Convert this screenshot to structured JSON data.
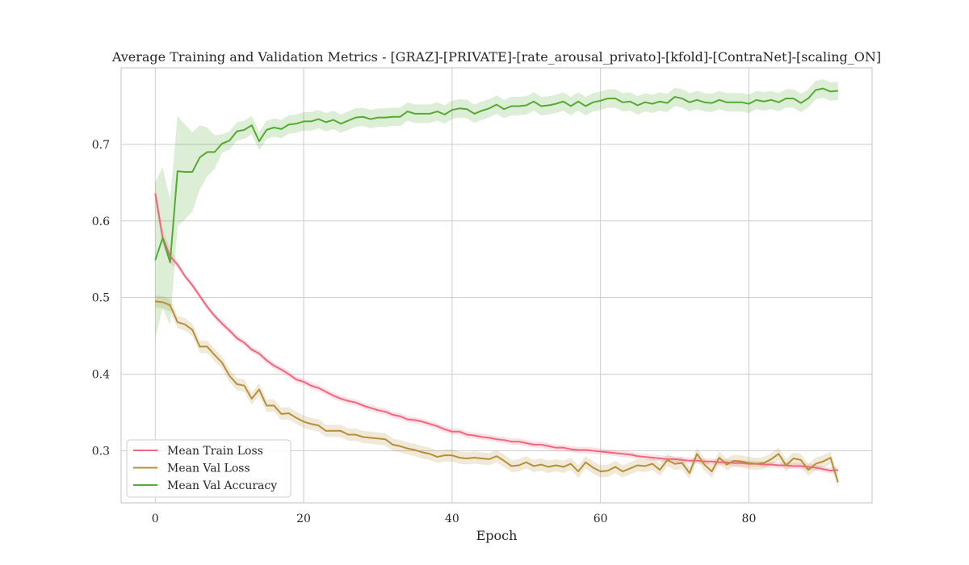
{
  "chart_data": {
    "type": "line",
    "title": "Average Training and Validation Metrics - [GRAZ]-[PRIVATE]-[rate_arousal_privato]-[kfold]-[ContraNet]-[scaling_ON]",
    "xlabel": "Epoch",
    "ylabel": "",
    "xlim": [
      -4.6,
      96.6
    ],
    "ylim": [
      0.232,
      0.8
    ],
    "xticks": [
      0,
      20,
      40,
      60,
      80
    ],
    "yticks": [
      0.3,
      0.4,
      0.5,
      0.6,
      0.7
    ],
    "grid": true,
    "legend_position": "lower-left",
    "series": [
      {
        "name": "Mean Train Loss",
        "color": "#f0677f",
        "band_width": 0.004,
        "values": [
          0.636,
          0.578,
          0.554,
          0.543,
          0.528,
          0.516,
          0.502,
          0.488,
          0.476,
          0.466,
          0.457,
          0.447,
          0.441,
          0.432,
          0.427,
          0.418,
          0.411,
          0.406,
          0.4,
          0.393,
          0.39,
          0.385,
          0.382,
          0.377,
          0.372,
          0.368,
          0.365,
          0.363,
          0.359,
          0.356,
          0.353,
          0.351,
          0.347,
          0.345,
          0.341,
          0.34,
          0.338,
          0.335,
          0.332,
          0.328,
          0.325,
          0.325,
          0.321,
          0.32,
          0.318,
          0.317,
          0.315,
          0.314,
          0.312,
          0.312,
          0.31,
          0.308,
          0.308,
          0.306,
          0.304,
          0.304,
          0.302,
          0.301,
          0.301,
          0.3,
          0.299,
          0.298,
          0.297,
          0.296,
          0.295,
          0.293,
          0.292,
          0.291,
          0.29,
          0.289,
          0.289,
          0.288,
          0.287,
          0.287,
          0.286,
          0.286,
          0.285,
          0.285,
          0.284,
          0.284,
          0.283,
          0.283,
          0.282,
          0.282,
          0.281,
          0.281,
          0.28,
          0.28,
          0.279,
          0.278,
          0.276,
          0.274,
          0.275
        ]
      },
      {
        "name": "Mean Val Loss",
        "color": "#b5903a",
        "band_width": 0.008,
        "values": [
          0.495,
          0.494,
          0.49,
          0.468,
          0.465,
          0.458,
          0.436,
          0.436,
          0.425,
          0.415,
          0.398,
          0.387,
          0.385,
          0.368,
          0.38,
          0.359,
          0.359,
          0.348,
          0.349,
          0.343,
          0.338,
          0.335,
          0.333,
          0.326,
          0.326,
          0.326,
          0.321,
          0.321,
          0.318,
          0.317,
          0.316,
          0.315,
          0.308,
          0.306,
          0.303,
          0.301,
          0.298,
          0.296,
          0.292,
          0.294,
          0.294,
          0.291,
          0.29,
          0.291,
          0.29,
          0.289,
          0.293,
          0.287,
          0.28,
          0.281,
          0.285,
          0.28,
          0.282,
          0.279,
          0.281,
          0.279,
          0.283,
          0.273,
          0.285,
          0.278,
          0.273,
          0.274,
          0.279,
          0.273,
          0.277,
          0.281,
          0.28,
          0.283,
          0.275,
          0.288,
          0.283,
          0.284,
          0.271,
          0.296,
          0.282,
          0.273,
          0.291,
          0.282,
          0.287,
          0.286,
          0.284,
          0.283,
          0.284,
          0.289,
          0.296,
          0.281,
          0.29,
          0.288,
          0.275,
          0.283,
          0.286,
          0.291,
          0.259
        ]
      },
      {
        "name": "Mean Val Accuracy",
        "color": "#55aa33",
        "band_width": 0.012,
        "values": [
          0.549,
          0.578,
          0.546,
          0.665,
          0.664,
          0.664,
          0.683,
          0.69,
          0.69,
          0.701,
          0.705,
          0.717,
          0.719,
          0.725,
          0.704,
          0.719,
          0.722,
          0.72,
          0.726,
          0.727,
          0.73,
          0.73,
          0.733,
          0.729,
          0.732,
          0.727,
          0.731,
          0.735,
          0.736,
          0.733,
          0.735,
          0.735,
          0.736,
          0.736,
          0.743,
          0.74,
          0.74,
          0.74,
          0.743,
          0.739,
          0.745,
          0.747,
          0.746,
          0.74,
          0.744,
          0.747,
          0.752,
          0.746,
          0.75,
          0.75,
          0.751,
          0.756,
          0.75,
          0.751,
          0.753,
          0.756,
          0.75,
          0.756,
          0.75,
          0.755,
          0.757,
          0.76,
          0.76,
          0.755,
          0.756,
          0.751,
          0.755,
          0.753,
          0.756,
          0.754,
          0.762,
          0.76,
          0.755,
          0.758,
          0.755,
          0.754,
          0.758,
          0.755,
          0.755,
          0.755,
          0.753,
          0.758,
          0.756,
          0.758,
          0.755,
          0.76,
          0.76,
          0.754,
          0.76,
          0.771,
          0.773,
          0.769,
          0.77
        ]
      }
    ]
  }
}
